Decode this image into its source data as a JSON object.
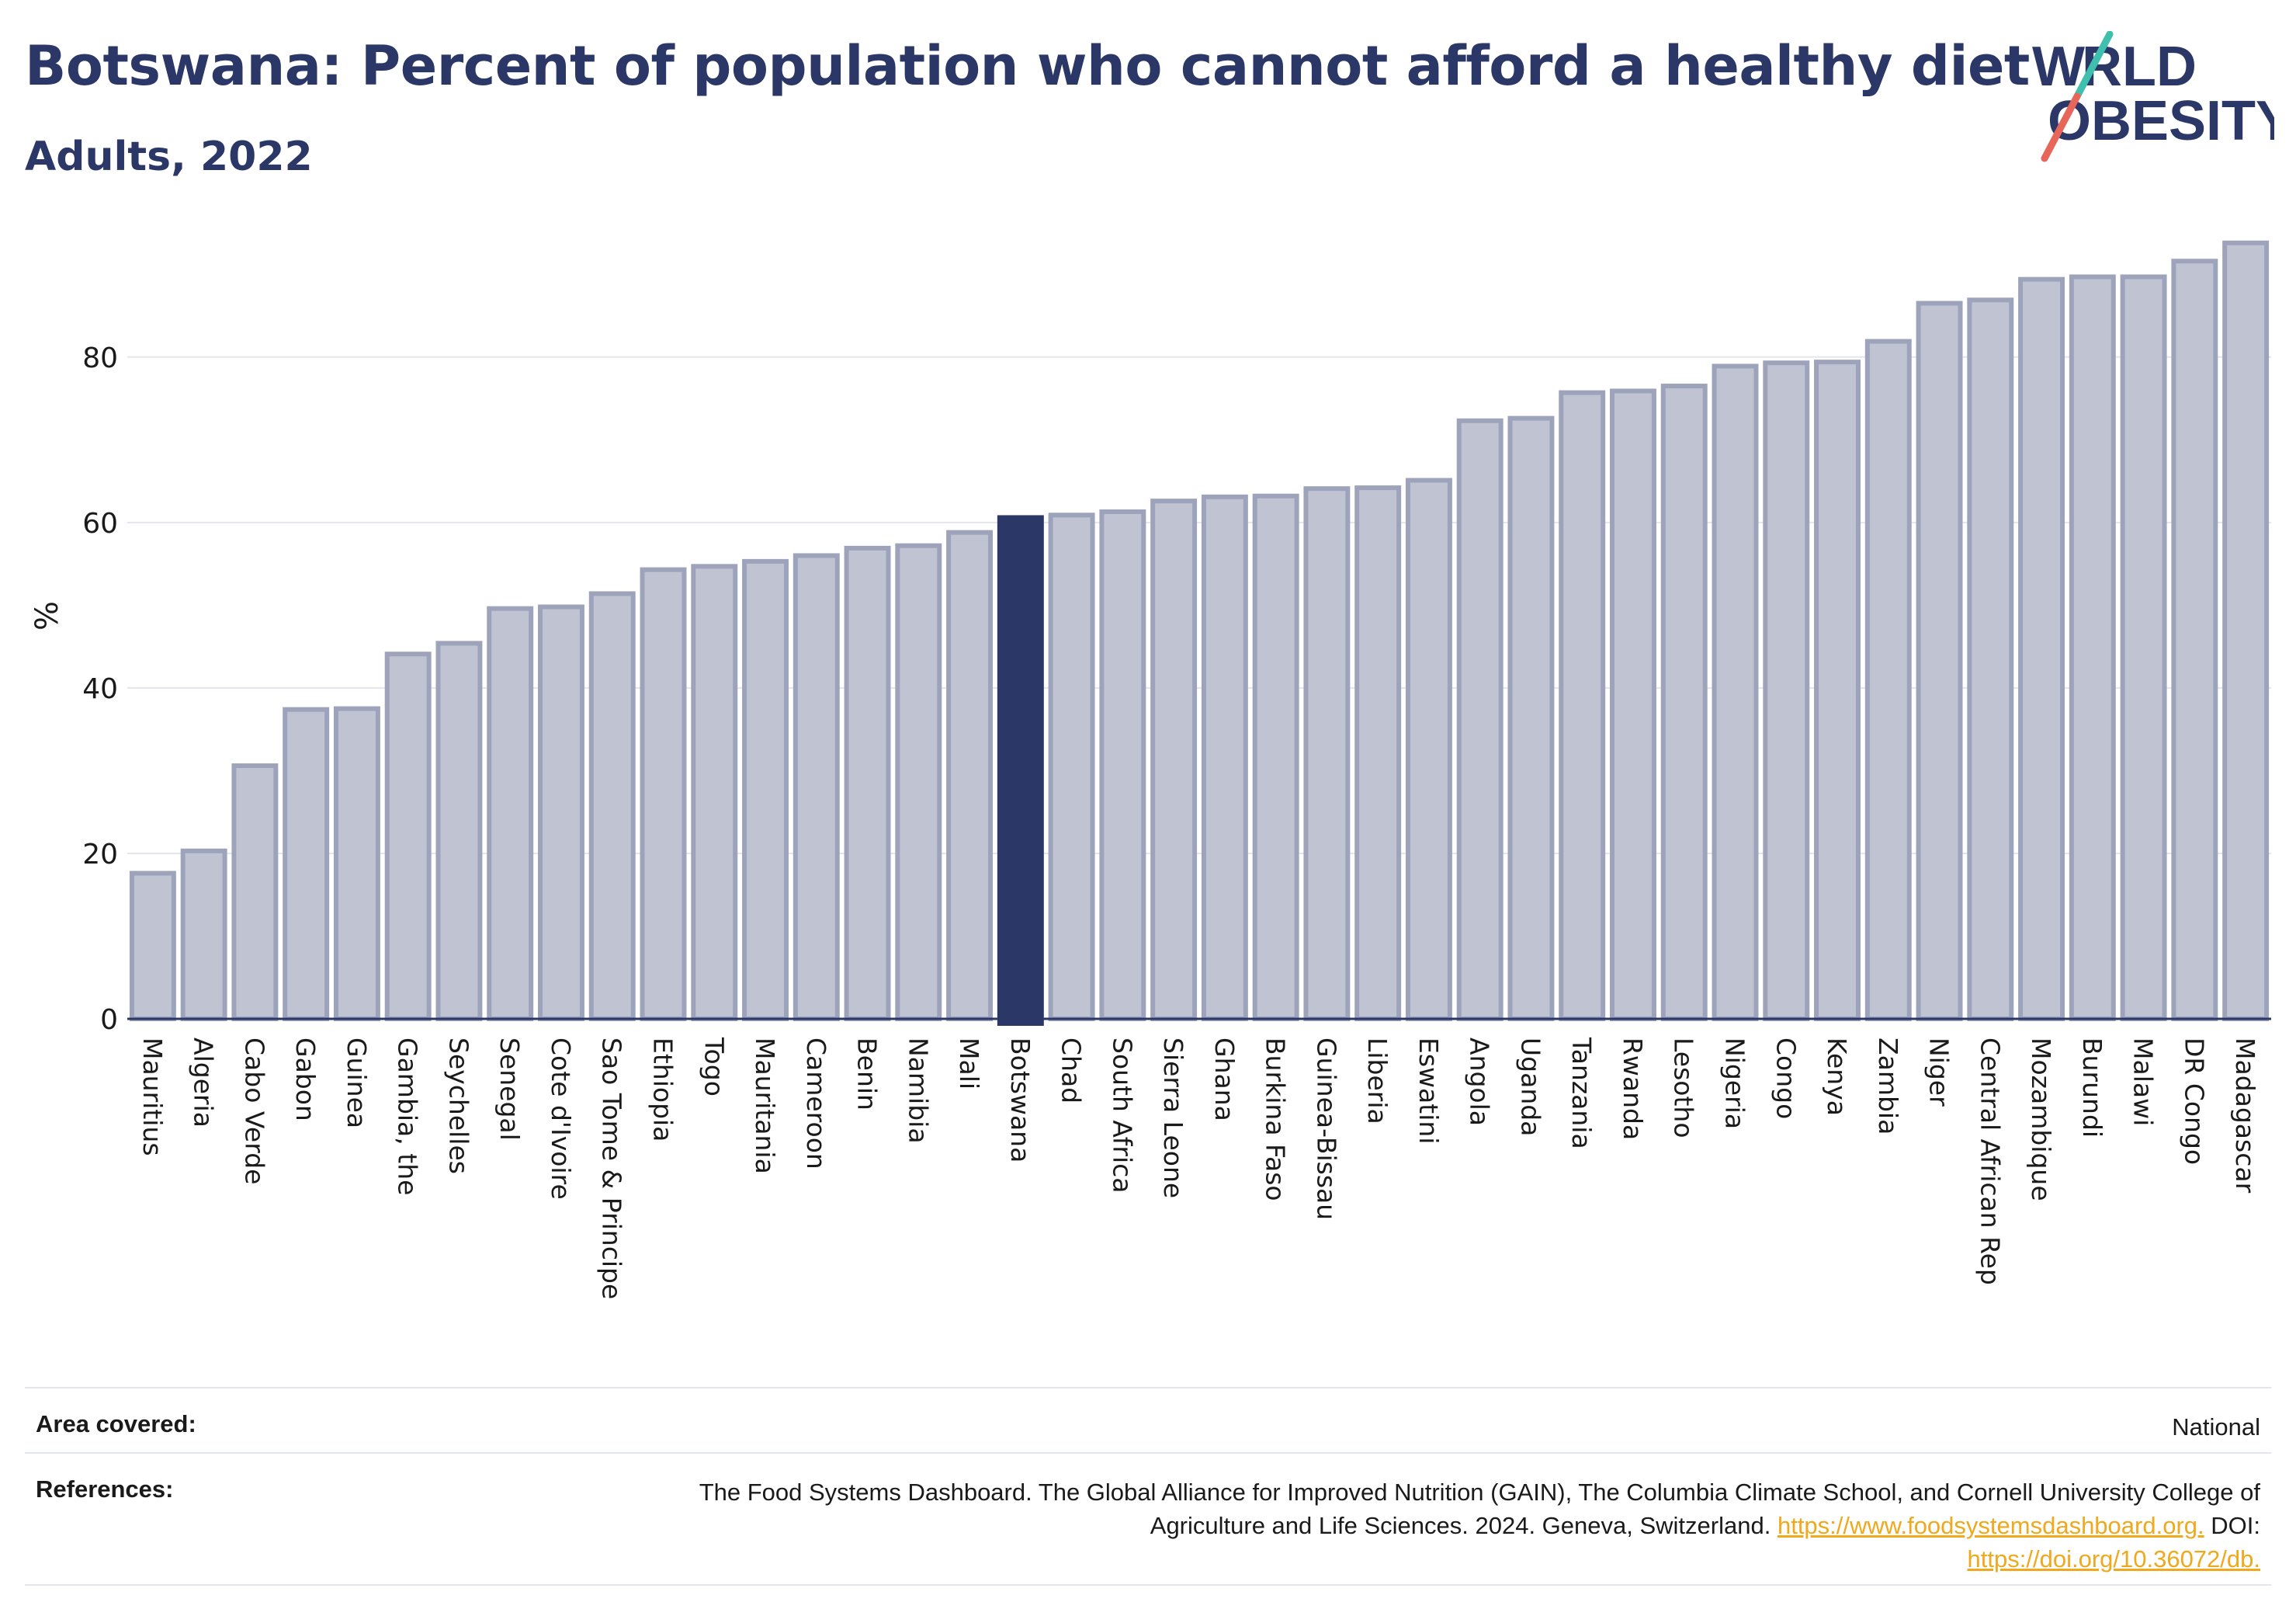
{
  "header": {
    "title": "Botswana: Percent of population who cannot afford a healthy diet",
    "subtitle": "Adults, 2022"
  },
  "logo": {
    "line1": "W RLD",
    "line2": "OBESITY",
    "text": "WORLD OBESITY",
    "colors": {
      "text": "#2b3766",
      "slash_teal": "#3fbfae",
      "slash_coral": "#e8655a"
    }
  },
  "chart_data": {
    "type": "bar",
    "title": "Botswana: Percent of population who cannot afford a healthy diet",
    "subtitle": "Adults, 2022",
    "xlabel": "",
    "ylabel": "%",
    "ylim": [
      0,
      95
    ],
    "yticks": [
      0,
      20,
      40,
      60,
      80
    ],
    "grid": true,
    "highlight": "Botswana",
    "colors": {
      "bar": "#c0c4d2",
      "bar_edge": "#9da3ba",
      "highlight": "#2b3766"
    },
    "categories": [
      "Mauritius",
      "Algeria",
      "Cabo Verde",
      "Gabon",
      "Guinea",
      "Gambia, the",
      "Seychelles",
      "Senegal",
      "Cote d'Ivoire",
      "Sao Tome & Principe",
      "Ethiopia",
      "Togo",
      "Mauritania",
      "Cameroon",
      "Benin",
      "Namibia",
      "Mali",
      "Botswana",
      "Chad",
      "South Africa",
      "Sierra Leone",
      "Ghana",
      "Burkina Faso",
      "Guinea-Bissau",
      "Liberia",
      "Eswatini",
      "Angola",
      "Uganda",
      "Tanzania",
      "Rwanda",
      "Lesotho",
      "Nigeria",
      "Congo",
      "Kenya",
      "Zambia",
      "Niger",
      "Central African Rep",
      "Mozambique",
      "Burundi",
      "Malawi",
      "DR Congo",
      "Madagascar"
    ],
    "values": [
      17.6,
      20.3,
      30.6,
      37.4,
      37.5,
      44.1,
      45.4,
      49.6,
      49.8,
      51.4,
      54.3,
      54.7,
      55.3,
      56.0,
      56.9,
      57.2,
      58.8,
      60.6,
      60.9,
      61.3,
      62.6,
      63.1,
      63.2,
      64.1,
      64.2,
      65.1,
      72.3,
      72.6,
      75.7,
      75.9,
      76.5,
      78.9,
      79.3,
      79.4,
      81.9,
      86.5,
      86.9,
      89.4,
      89.7,
      89.7,
      91.6,
      93.8
    ]
  },
  "footer": {
    "area_label": "Area covered:",
    "area_value": "National",
    "references_label": "References:",
    "references_text": "The Food Systems Dashboard. The Global Alliance for Improved Nutrition (GAIN), The Columbia Climate School, and Cornell University College of Agriculture and Life Sciences. 2024. Geneva, Switzerland.",
    "references_link": "https://www.foodsystemsdashboard.org.",
    "references_doi_label": "DOI:",
    "references_doi": "https://doi.org/10.36072/db."
  }
}
